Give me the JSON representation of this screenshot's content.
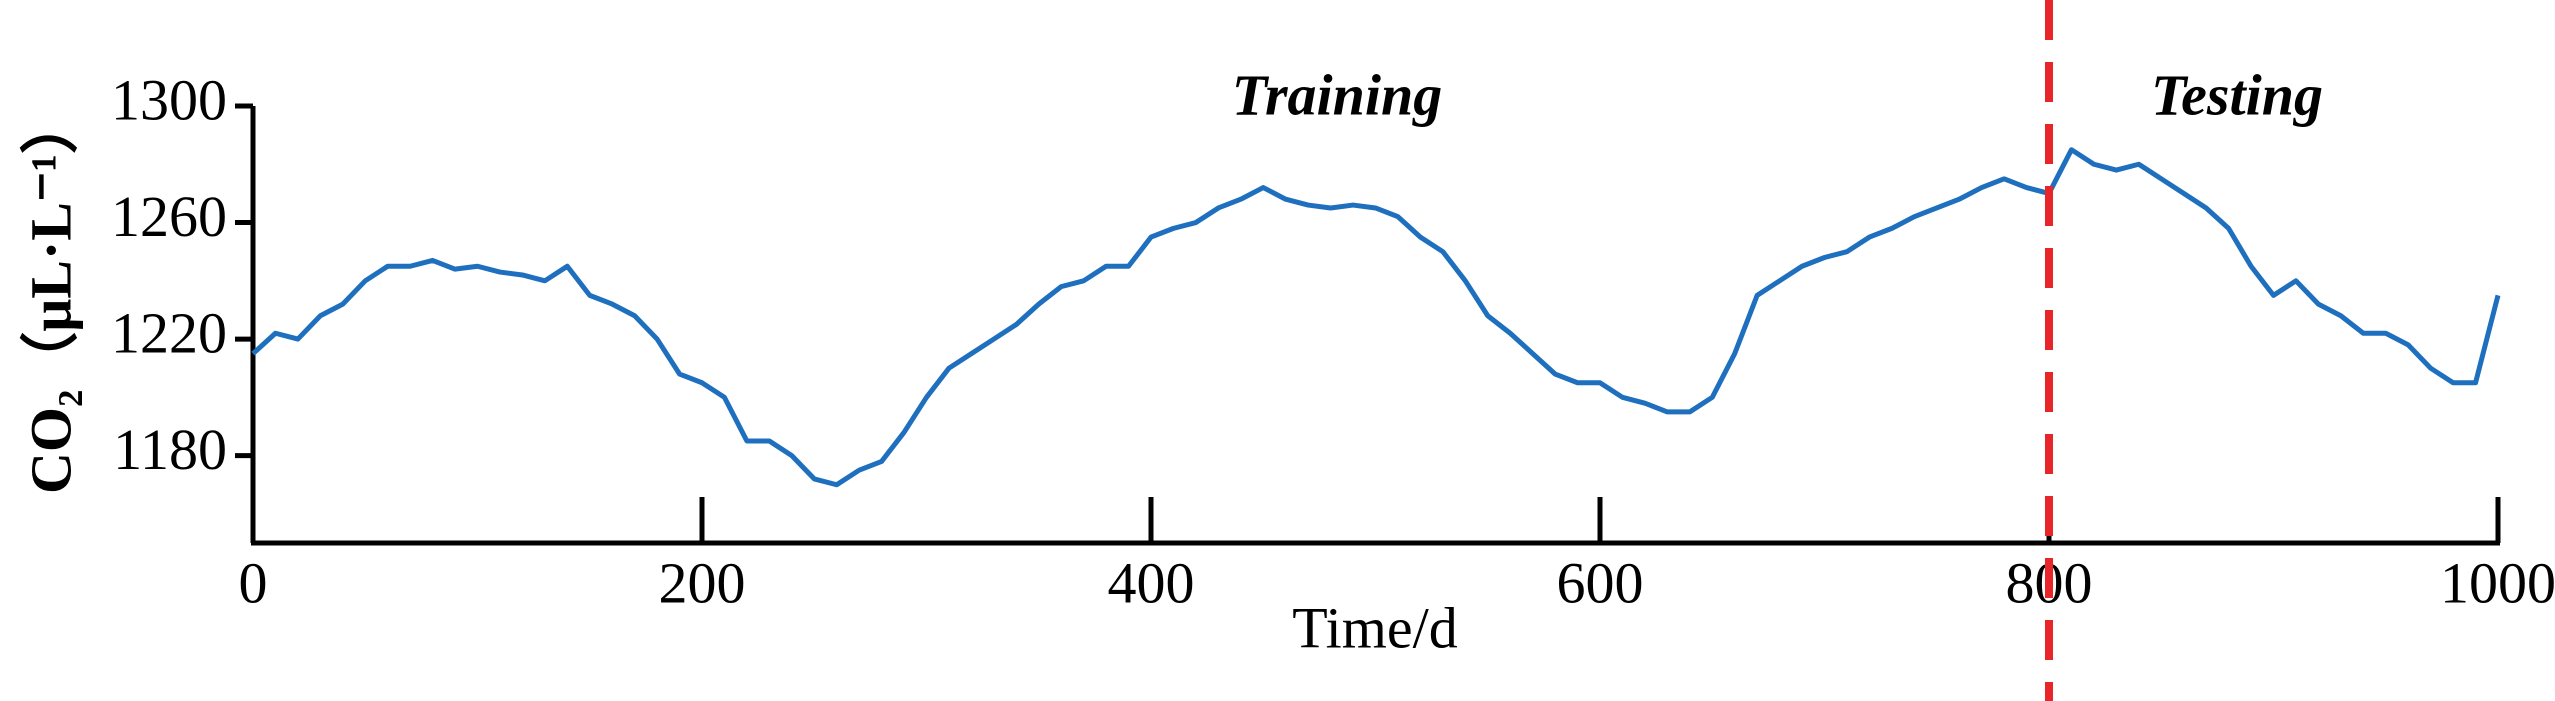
{
  "chart_data": {
    "type": "line",
    "x_label": "Time/d",
    "y_label": "CO₂（μL·L⁻¹）",
    "xlim": [
      0,
      1000
    ],
    "xticks": [
      0,
      200,
      400,
      600,
      800,
      1000
    ],
    "ylim": [
      1150,
      1300
    ],
    "yticks": [
      1180,
      1220,
      1260,
      1300
    ],
    "x": [
      0,
      10,
      20,
      30,
      40,
      50,
      60,
      70,
      80,
      90,
      100,
      110,
      120,
      130,
      140,
      150,
      160,
      170,
      180,
      190,
      200,
      210,
      220,
      230,
      240,
      250,
      260,
      270,
      280,
      290,
      300,
      310,
      320,
      330,
      340,
      350,
      360,
      370,
      380,
      390,
      400,
      410,
      420,
      430,
      440,
      450,
      460,
      470,
      480,
      490,
      500,
      510,
      520,
      530,
      540,
      550,
      560,
      570,
      580,
      590,
      600,
      610,
      620,
      630,
      640,
      650,
      660,
      670,
      680,
      690,
      700,
      710,
      720,
      730,
      740,
      750,
      760,
      770,
      780,
      790,
      800,
      810,
      820,
      830,
      840,
      850,
      860,
      870,
      880,
      890,
      900,
      910,
      920,
      930,
      940,
      950,
      960,
      970,
      980,
      990,
      1000
    ],
    "series": [
      {
        "name": "CO₂",
        "color": "#1f6fbf",
        "values": [
          1215,
          1222,
          1220,
          1228,
          1232,
          1240,
          1245,
          1245,
          1247,
          1244,
          1245,
          1243,
          1242,
          1240,
          1245,
          1235,
          1232,
          1228,
          1220,
          1208,
          1205,
          1200,
          1185,
          1185,
          1180,
          1172,
          1170,
          1175,
          1178,
          1188,
          1200,
          1210,
          1215,
          1220,
          1225,
          1232,
          1238,
          1240,
          1245,
          1245,
          1255,
          1258,
          1260,
          1265,
          1268,
          1272,
          1268,
          1266,
          1265,
          1266,
          1265,
          1262,
          1255,
          1250,
          1240,
          1228,
          1222,
          1215,
          1208,
          1205,
          1205,
          1200,
          1198,
          1195,
          1195,
          1200,
          1215,
          1235,
          1240,
          1245,
          1248,
          1250,
          1255,
          1258,
          1262,
          1265,
          1268,
          1272,
          1275,
          1272,
          1270,
          1285,
          1280,
          1278,
          1280,
          1275,
          1270,
          1265,
          1258,
          1245,
          1235,
          1240,
          1232,
          1228,
          1222,
          1222,
          1218,
          1210,
          1205,
          1205,
          1235
        ]
      }
    ],
    "split": {
      "x": 800,
      "color": "#e8262a"
    },
    "annotations": [
      "Training",
      "Testing"
    ]
  }
}
